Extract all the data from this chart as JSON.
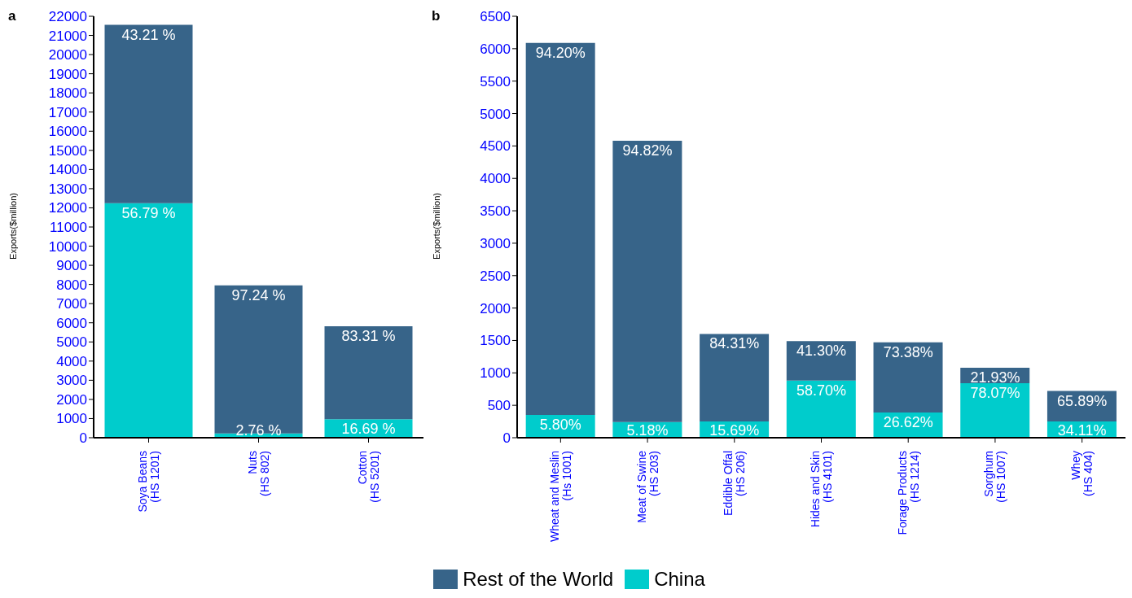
{
  "chart_data": [
    {
      "type": "bar",
      "title": "a",
      "ylabel": "Exports($million)",
      "stacked": true,
      "grid": false,
      "categories": [
        "Soya Beans\n(HS 1201)",
        "Nuts\n(HS 802)",
        "Cotton\n(HS 5201)"
      ],
      "ylim": [
        0,
        22000
      ],
      "yticks": [
        0,
        1000,
        2000,
        3000,
        4000,
        5000,
        6000,
        7000,
        8000,
        9000,
        10000,
        11000,
        12000,
        13000,
        14000,
        15000,
        16000,
        17000,
        18000,
        19000,
        20000,
        21000,
        22000
      ],
      "series": [
        {
          "color": "#00cccc",
          "values": [
            12240,
            220,
            970
          ]
        },
        {
          "color": "#376489",
          "values": [
            9310,
            7730,
            4850
          ]
        }
      ],
      "annotations": [
        {
          "text": "56.79 %",
          "x": "Soya Beans\n(HS 1201)",
          "y": 12240
        },
        {
          "text": "2.76 %",
          "x": "Nuts\n(HS 802)",
          "y": 220
        },
        {
          "text": "16.69 %",
          "x": "Cotton\n(HS 5201)",
          "y": 970
        },
        {
          "text": "43.21 %",
          "x": "Soya Beans\n(HS 1201)",
          "y": 21550
        },
        {
          "text": "97.24 %",
          "x": "Nuts\n(HS 802)",
          "y": 7950
        },
        {
          "text": "83.31 %",
          "x": "Cotton\n(HS 5201)",
          "y": 5820
        }
      ]
    },
    {
      "type": "bar",
      "title": "b",
      "ylabel": "Exports($million)",
      "stacked": true,
      "grid": false,
      "legend": "bottom",
      "categories": [
        "Wheat and Meslin\n(Hs 1001)",
        "Meat of Swine\n(HS 203)",
        "Eddible Offal\n(HS 206)",
        "Hides and Skin\n(HS 4101)",
        "Forage Products\n(HS 1214)",
        "Sorghum\n(HS 1007)",
        "Whey\n(HS 404)"
      ],
      "ylim": [
        0,
        6500
      ],
      "yticks": [
        0,
        500,
        1000,
        1500,
        2000,
        2500,
        3000,
        3500,
        4000,
        4500,
        5000,
        5500,
        6000,
        6500
      ],
      "series": [
        {
          "name": "China",
          "color": "#00cccc",
          "values": [
            350,
            240,
            250,
            880,
            390,
            840,
            250
          ]
        },
        {
          "name": "Rest of the World",
          "color": "#376489",
          "values": [
            5740,
            4340,
            1350,
            610,
            1080,
            240,
            470
          ]
        }
      ],
      "annotations": [
        {
          "text": "5.80%",
          "x": "Wheat and Meslin\n(Hs 1001)",
          "y": 350
        },
        {
          "text": "5.18%",
          "x": "Meat of Swine\n(HS 203)",
          "y": 240
        },
        {
          "text": "15.69%",
          "x": "Eddible Offal\n(HS 206)",
          "y": 250
        },
        {
          "text": "58.70%",
          "x": "Hides and Skin\n(HS 4101)",
          "y": 880
        },
        {
          "text": "26.62%",
          "x": "Forage Products\n(HS 1214)",
          "y": 390
        },
        {
          "text": "78.07%",
          "x": "Sorghum\n(HS 1007)",
          "y": 840
        },
        {
          "text": "34.11%",
          "x": "Whey\n(HS 404)",
          "y": 250
        },
        {
          "text": "94.20%",
          "x": "Wheat and Meslin\n(Hs 1001)",
          "y": 6090
        },
        {
          "text": "94.82%",
          "x": "Meat of Swine\n(HS 203)",
          "y": 4580
        },
        {
          "text": "84.31%",
          "x": "Eddible Offal\n(HS 206)",
          "y": 1600
        },
        {
          "text": "41.30%",
          "x": "Hides and Skin\n(HS 4101)",
          "y": 1490
        },
        {
          "text": "73.38%",
          "x": "Forage Products\n(HS 1214)",
          "y": 1470
        },
        {
          "text": "21.93%",
          "x": "Sorghum\n(HS 1007)",
          "y": 1080
        },
        {
          "text": "65.89%",
          "x": "Whey\n(HS 404)",
          "y": 720
        }
      ]
    }
  ]
}
